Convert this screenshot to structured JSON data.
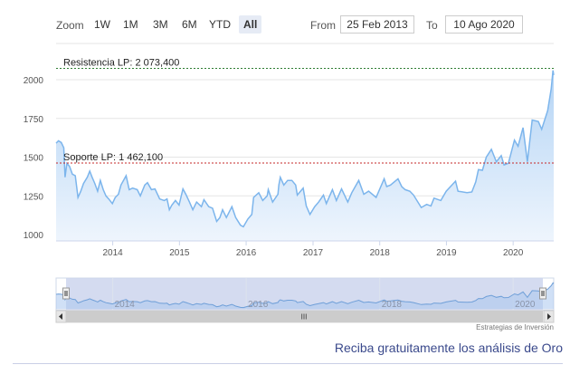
{
  "toolbar": {
    "zoom_label": "Zoom",
    "buttons": [
      "1W",
      "1M",
      "3M",
      "6M",
      "YTD",
      "All"
    ],
    "active": "All",
    "from_label": "From",
    "from_value": "25 Feb 2013",
    "to_label": "To",
    "to_value": "10 Ago 2020"
  },
  "chart_data": {
    "type": "area",
    "title": "",
    "xlabel": "",
    "ylabel": "",
    "x_ticks": [
      "2014",
      "2015",
      "2016",
      "2017",
      "2018",
      "2019",
      "2020"
    ],
    "y_ticks": [
      "1000",
      "1250",
      "1500",
      "1750",
      "2000"
    ],
    "ylim": [
      1000,
      2070
    ],
    "xlim": [
      "2013-02-25",
      "2020-08-10"
    ],
    "series": [
      {
        "values": [
          [
            "2013-02-25",
            1590
          ],
          [
            "2013-03-10",
            1605
          ],
          [
            "2013-03-25",
            1595
          ],
          [
            "2013-04-08",
            1560
          ],
          [
            "2013-04-15",
            1370
          ],
          [
            "2013-04-25",
            1460
          ],
          [
            "2013-05-10",
            1440
          ],
          [
            "2013-05-25",
            1390
          ],
          [
            "2013-06-10",
            1380
          ],
          [
            "2013-06-25",
            1240
          ],
          [
            "2013-07-10",
            1280
          ],
          [
            "2013-07-25",
            1330
          ],
          [
            "2013-08-15",
            1370
          ],
          [
            "2013-08-28",
            1410
          ],
          [
            "2013-09-10",
            1370
          ],
          [
            "2013-09-25",
            1330
          ],
          [
            "2013-10-10",
            1280
          ],
          [
            "2013-10-25",
            1350
          ],
          [
            "2013-11-10",
            1290
          ],
          [
            "2013-11-25",
            1250
          ],
          [
            "2013-12-10",
            1230
          ],
          [
            "2013-12-30",
            1200
          ],
          [
            "2014-01-15",
            1240
          ],
          [
            "2014-02-01",
            1260
          ],
          [
            "2014-02-15",
            1320
          ],
          [
            "2014-03-15",
            1380
          ],
          [
            "2014-04-01",
            1290
          ],
          [
            "2014-04-20",
            1300
          ],
          [
            "2014-05-15",
            1290
          ],
          [
            "2014-06-01",
            1250
          ],
          [
            "2014-06-25",
            1320
          ],
          [
            "2014-07-10",
            1335
          ],
          [
            "2014-08-01",
            1290
          ],
          [
            "2014-08-20",
            1295
          ],
          [
            "2014-09-15",
            1230
          ],
          [
            "2014-10-10",
            1220
          ],
          [
            "2014-10-25",
            1230
          ],
          [
            "2014-11-07",
            1160
          ],
          [
            "2014-11-20",
            1190
          ],
          [
            "2014-12-10",
            1220
          ],
          [
            "2014-12-30",
            1190
          ],
          [
            "2015-01-20",
            1295
          ],
          [
            "2015-02-05",
            1260
          ],
          [
            "2015-02-25",
            1210
          ],
          [
            "2015-03-15",
            1160
          ],
          [
            "2015-04-05",
            1210
          ],
          [
            "2015-05-01",
            1180
          ],
          [
            "2015-05-15",
            1225
          ],
          [
            "2015-06-10",
            1180
          ],
          [
            "2015-07-01",
            1170
          ],
          [
            "2015-07-24",
            1085
          ],
          [
            "2015-08-10",
            1110
          ],
          [
            "2015-08-25",
            1160
          ],
          [
            "2015-09-15",
            1110
          ],
          [
            "2015-10-15",
            1180
          ],
          [
            "2015-11-05",
            1110
          ],
          [
            "2015-12-01",
            1060
          ],
          [
            "2015-12-17",
            1050
          ],
          [
            "2016-01-10",
            1100
          ],
          [
            "2016-02-01",
            1130
          ],
          [
            "2016-02-11",
            1240
          ],
          [
            "2016-03-10",
            1270
          ],
          [
            "2016-04-01",
            1220
          ],
          [
            "2016-04-25",
            1250
          ],
          [
            "2016-05-01",
            1290
          ],
          [
            "2016-05-25",
            1210
          ],
          [
            "2016-06-23",
            1260
          ],
          [
            "2016-06-28",
            1320
          ],
          [
            "2016-07-06",
            1370
          ],
          [
            "2016-07-25",
            1320
          ],
          [
            "2016-08-15",
            1350
          ],
          [
            "2016-09-07",
            1350
          ],
          [
            "2016-09-28",
            1320
          ],
          [
            "2016-10-07",
            1255
          ],
          [
            "2016-11-08",
            1300
          ],
          [
            "2016-11-25",
            1185
          ],
          [
            "2016-12-15",
            1130
          ],
          [
            "2017-01-10",
            1180
          ],
          [
            "2017-02-01",
            1210
          ],
          [
            "2017-02-27",
            1255
          ],
          [
            "2017-03-15",
            1200
          ],
          [
            "2017-04-17",
            1290
          ],
          [
            "2017-05-09",
            1220
          ],
          [
            "2017-06-06",
            1295
          ],
          [
            "2017-07-10",
            1210
          ],
          [
            "2017-08-01",
            1270
          ],
          [
            "2017-09-08",
            1350
          ],
          [
            "2017-10-06",
            1260
          ],
          [
            "2017-11-01",
            1280
          ],
          [
            "2017-12-12",
            1240
          ],
          [
            "2018-01-25",
            1360
          ],
          [
            "2018-02-08",
            1310
          ],
          [
            "2018-03-01",
            1320
          ],
          [
            "2018-04-11",
            1360
          ],
          [
            "2018-05-01",
            1310
          ],
          [
            "2018-05-20",
            1290
          ],
          [
            "2018-06-15",
            1280
          ],
          [
            "2018-07-05",
            1255
          ],
          [
            "2018-08-16",
            1175
          ],
          [
            "2018-09-15",
            1195
          ],
          [
            "2018-10-08",
            1185
          ],
          [
            "2018-10-25",
            1235
          ],
          [
            "2018-12-01",
            1220
          ],
          [
            "2018-12-31",
            1280
          ],
          [
            "2019-02-20",
            1345
          ],
          [
            "2019-03-05",
            1280
          ],
          [
            "2019-04-23",
            1270
          ],
          [
            "2019-05-20",
            1275
          ],
          [
            "2019-06-10",
            1340
          ],
          [
            "2019-06-25",
            1420
          ],
          [
            "2019-07-17",
            1415
          ],
          [
            "2019-08-07",
            1500
          ],
          [
            "2019-09-04",
            1550
          ],
          [
            "2019-10-01",
            1470
          ],
          [
            "2019-10-28",
            1510
          ],
          [
            "2019-11-12",
            1450
          ],
          [
            "2019-12-06",
            1460
          ],
          [
            "2020-01-08",
            1610
          ],
          [
            "2020-01-28",
            1570
          ],
          [
            "2020-02-24",
            1690
          ],
          [
            "2020-03-19",
            1470
          ],
          [
            "2020-04-14",
            1740
          ],
          [
            "2020-05-18",
            1730
          ],
          [
            "2020-06-05",
            1680
          ],
          [
            "2020-07-08",
            1800
          ],
          [
            "2020-07-27",
            1940
          ],
          [
            "2020-08-06",
            2060
          ],
          [
            "2020-08-10",
            2030
          ]
        ]
      }
    ],
    "reference_lines": [
      {
        "label": "Resistencia LP: 2 073,400",
        "value": 2073.4,
        "color": "#2e7d32"
      },
      {
        "label": "Soporte LP: 1 462,100",
        "value": 1462.1,
        "color": "#c62828"
      }
    ],
    "navigator_ticks": [
      "2014",
      "2016",
      "2018",
      "2020"
    ],
    "colors": {
      "line": "#7cb5ec",
      "fill_top": "#b4d4f5",
      "fill_bottom": "#eef5fd"
    }
  },
  "scrollbar": {
    "grip": "III"
  },
  "credit": "Estrategias de Inversión",
  "promo": "Reciba gratuitamente los análisis de Oro"
}
